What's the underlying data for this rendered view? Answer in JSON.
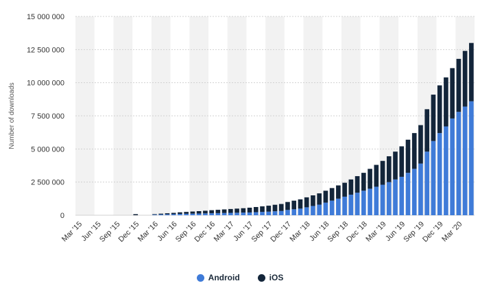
{
  "chart_data": {
    "type": "bar",
    "stacked": true,
    "title": "",
    "xlabel": "",
    "ylabel": "Number of downloads",
    "ylim": [
      0,
      15000000
    ],
    "yticks": [
      0,
      2500000,
      5000000,
      7500000,
      10000000,
      12500000,
      15000000
    ],
    "ytick_labels": [
      "0",
      "2 500 000",
      "5 000 000",
      "7 500 000",
      "10 000 000",
      "12 500 000",
      "15 000 000"
    ],
    "grid": true,
    "legend_position": "bottom-center",
    "categories": [
      "Mar '15",
      "Apr '15",
      "May '15",
      "Jun '15",
      "Jul '15",
      "Aug '15",
      "Sep '15",
      "Oct '15",
      "Nov '15",
      "Dec '15",
      "Jan '16",
      "Feb '16",
      "Mar '16",
      "Apr '16",
      "May '16",
      "Jun '16",
      "Jul '16",
      "Aug '16",
      "Sep '16",
      "Oct '16",
      "Nov '16",
      "Dec '16",
      "Jan '17",
      "Feb '17",
      "Mar '17",
      "Apr '17",
      "May '17",
      "Jun '17",
      "Jul '17",
      "Aug '17",
      "Sep '17",
      "Oct '17",
      "Nov '17",
      "Dec '17",
      "Jan '18",
      "Feb '18",
      "Mar '18",
      "Apr '18",
      "May '18",
      "Jun '18",
      "Jul '18",
      "Aug '18",
      "Sep '18",
      "Oct '18",
      "Nov '18",
      "Dec '18",
      "Jan '19",
      "Feb '19",
      "Mar '19",
      "Apr '19",
      "May '19",
      "Jun '19",
      "Jul '19",
      "Aug '19",
      "Sep '19",
      "Oct '19",
      "Nov '19",
      "Dec '19",
      "Jan '20",
      "Feb '20",
      "Mar '20",
      "Apr '20",
      "May '20"
    ],
    "xtick_labels": [
      "Mar '15",
      "Jun '15",
      "Sep '15",
      "Dec '15",
      "Mar '16",
      "Jun '16",
      "Sep '16",
      "Dec '16",
      "Mar '17",
      "Jun '17",
      "Sep '17",
      "Dec '17",
      "Mar '18",
      "Jun '18",
      "Sep '18",
      "Dec '18",
      "Mar '19",
      "Jun '19",
      "Sep '19",
      "Dec '19",
      "Mar '20"
    ],
    "series": [
      {
        "name": "Android",
        "color": "#3f7bd8",
        "values": [
          0,
          0,
          0,
          0,
          0,
          0,
          0,
          0,
          0,
          0,
          0,
          0,
          40000,
          60000,
          70000,
          80000,
          100000,
          110000,
          120000,
          130000,
          140000,
          150000,
          160000,
          170000,
          180000,
          190000,
          200000,
          210000,
          230000,
          250000,
          270000,
          300000,
          320000,
          400000,
          450000,
          500000,
          600000,
          700000,
          800000,
          950000,
          1100000,
          1250000,
          1400000,
          1550000,
          1700000,
          1850000,
          2000000,
          2150000,
          2300000,
          2500000,
          2700000,
          2900000,
          3200000,
          3500000,
          3900000,
          4800000,
          5600000,
          6200000,
          6700000,
          7300000,
          7800000,
          8200000,
          8600000
        ]
      },
      {
        "name": "iOS",
        "color": "#13253a",
        "values": [
          0,
          0,
          0,
          0,
          0,
          0,
          0,
          0,
          0,
          80000,
          0,
          0,
          40000,
          60000,
          80000,
          100000,
          120000,
          140000,
          160000,
          180000,
          200000,
          230000,
          250000,
          270000,
          290000,
          310000,
          330000,
          360000,
          390000,
          420000,
          450000,
          490000,
          530000,
          600000,
          650000,
          700000,
          750000,
          800000,
          850000,
          900000,
          950000,
          1000000,
          1050000,
          1150000,
          1250000,
          1350000,
          1500000,
          1650000,
          1800000,
          1950000,
          2100000,
          2300000,
          2500000,
          2700000,
          2900000,
          3200000,
          3500000,
          3600000,
          3700000,
          3800000,
          4000000,
          4200000,
          4400000
        ]
      }
    ]
  },
  "legend": {
    "android_label": "Android",
    "ios_label": "iOS",
    "android_color": "#3f7bd8",
    "ios_color": "#13253a"
  }
}
